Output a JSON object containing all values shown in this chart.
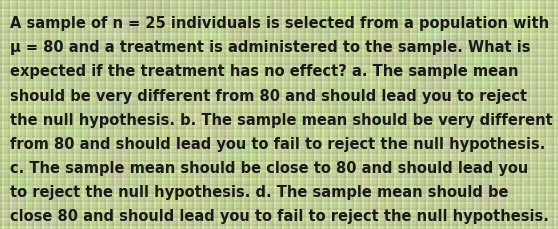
{
  "lines": [
    "A sample of n = 25 individuals is selected from a population with",
    "μ = 80 and a treatment is administered to the sample. What is",
    "expected if the treatment has no effect? a. The sample mean",
    "should be very different from 80 and should lead you to reject",
    "the null hypothesis. b. The sample mean should be very different",
    "from 80 and should lead you to fail to reject the null hypothesis.",
    "c. The sample mean should be close to 80 and should lead you",
    "to reject the null hypothesis. d. The sample mean should be",
    "close 80 and should lead you to fail to reject the null hypothesis."
  ],
  "bg_color_base": "#b8c890",
  "bg_color_light": "#d4e0a8",
  "bg_color_mid": "#c0cc8c",
  "text_color": "#1a1a1a",
  "font_size": 10.5,
  "fig_width": 5.58,
  "fig_height": 2.3,
  "dpi": 100
}
